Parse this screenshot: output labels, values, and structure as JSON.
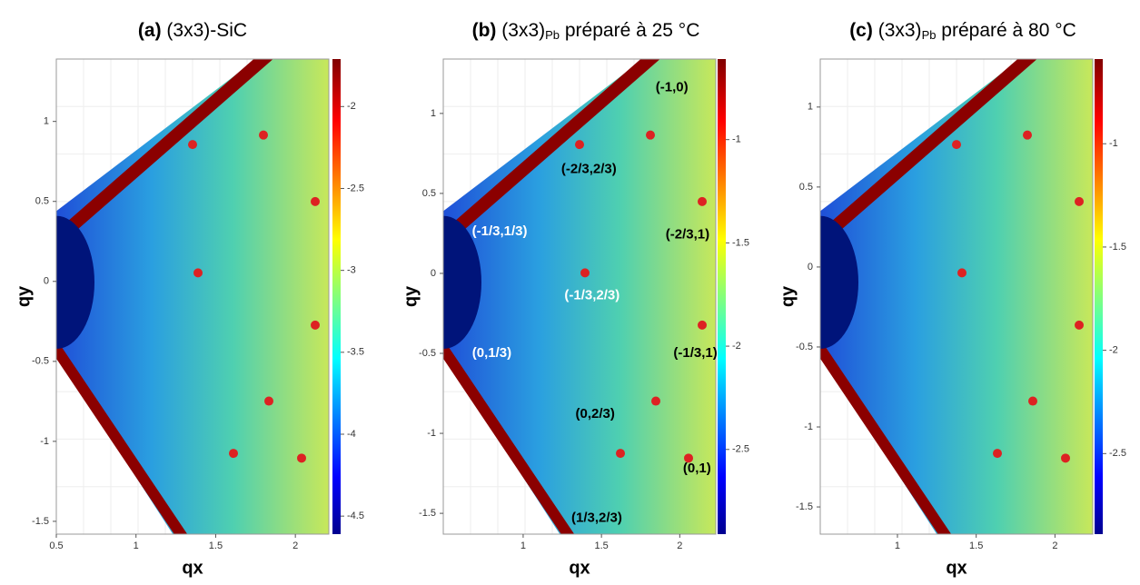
{
  "chart_data": [
    {
      "type": "heatmap",
      "panel": "(a)",
      "title": "(3x3)-SiC",
      "title_sub": null,
      "title_rest": null,
      "xlabel": "qx",
      "ylabel": "qy",
      "xlim": [
        0.5,
        2.21
      ],
      "ylim": [
        -1.58,
        1.39
      ],
      "xticks": [
        0.5,
        1,
        1.5,
        2
      ],
      "yticks": [
        -1.5,
        -1,
        -0.5,
        0,
        0.5,
        1
      ],
      "colorbar": {
        "lim": [
          -4.61,
          -1.71
        ],
        "ticks": [
          -4.5,
          -4,
          -3.5,
          -3,
          -2.5,
          -2
        ]
      },
      "annotations": []
    },
    {
      "type": "heatmap",
      "panel": "(b)",
      "title": "(3x3)",
      "title_sub": "Pb",
      "title_rest": " préparé à 25 °C",
      "xlabel": "qx",
      "ylabel": "qy",
      "xlim": [
        0.49,
        2.23
      ],
      "ylim": [
        -1.63,
        1.34
      ],
      "xticks": [
        1,
        1.5,
        2
      ],
      "yticks": [
        -1.5,
        -1,
        -0.5,
        0,
        0.5,
        1
      ],
      "colorbar": {
        "lim": [
          -2.91,
          -0.61
        ],
        "ticks": [
          -2.5,
          -2,
          -1.5,
          -1
        ]
      },
      "annotations": [
        {
          "text": "(-1,0)",
          "x": 1.95,
          "y": 1.16,
          "color": "#000000"
        },
        {
          "text": "(-2/3,2/3)",
          "x": 1.42,
          "y": 0.65,
          "color": "#000000"
        },
        {
          "text": "(-1/3,1/3)",
          "x": 0.85,
          "y": 0.26,
          "color": "#ffffff"
        },
        {
          "text": "(-2/3,1)",
          "x": 2.05,
          "y": 0.24,
          "color": "#000000"
        },
        {
          "text": "(-1/3,2/3)",
          "x": 1.44,
          "y": -0.14,
          "color": "#ffffff"
        },
        {
          "text": "(0,1/3)",
          "x": 0.8,
          "y": -0.5,
          "color": "#ffffff"
        },
        {
          "text": "(-1/3,1)",
          "x": 2.1,
          "y": -0.5,
          "color": "#000000"
        },
        {
          "text": "(0,2/3)",
          "x": 1.46,
          "y": -0.88,
          "color": "#000000"
        },
        {
          "text": "(0,1)",
          "x": 2.11,
          "y": -1.22,
          "color": "#000000"
        },
        {
          "text": "(1/3,2/3)",
          "x": 1.47,
          "y": -1.53,
          "color": "#000000"
        }
      ]
    },
    {
      "type": "heatmap",
      "panel": "(c)",
      "title": "(3x3)",
      "title_sub": "Pb",
      "title_rest": " préparé à 80 °C",
      "xlabel": "qx",
      "ylabel": "qy",
      "xlim": [
        0.51,
        2.24
      ],
      "ylim": [
        -1.67,
        1.3
      ],
      "xticks": [
        1,
        1.5,
        2
      ],
      "yticks": [
        -1.5,
        -1,
        -0.5,
        0,
        0.5,
        1
      ],
      "colorbar": {
        "lim": [
          -2.89,
          -0.59
        ],
        "ticks": [
          -2.5,
          -2,
          -1.5,
          -1
        ]
      },
      "annotations": []
    }
  ]
}
